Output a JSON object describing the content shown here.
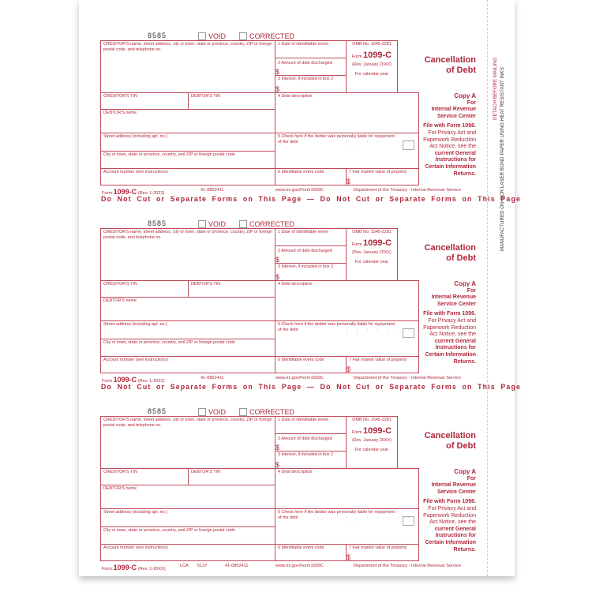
{
  "side": {
    "detach": "DETACH BEFORE MAILING",
    "manufactured": "MANUFACTURED ON OCR LASER BOND PAPER USING HEAT RESISTANT INKS"
  },
  "labels": {
    "form_number": "8585",
    "void": "VOID",
    "corrected": "CORRECTED",
    "creditor_name": "CREDITOR'S name, street address, city or town, state or province, country, ZIP or foreign postal code, and telephone no.",
    "creditor_tin": "CREDITOR'S TIN",
    "debtor_tin": "DEBTOR'S TIN",
    "debtor_name": "DEBTOR'S name",
    "street": "Street address (including apt. no.)",
    "city": "City or town, state or province, country, and ZIP or foreign postal code",
    "account": "Account number (see instructions)",
    "box1": "1 Date of identifiable event",
    "box2": "2 Amount of debt discharged",
    "box3": "3 Interest, if included in box 2",
    "box4": "4 Debt description",
    "box5": "5 Check here if the debtor was personally liable for repayment of the debt",
    "box5_dots": ". . . . . . . . .",
    "box6": "6 Identifiable event code",
    "box7": "7 Fair market value of property",
    "dollar": "$",
    "omb": "OMB No. 1545-2281",
    "form_word": "Form",
    "form_name": "1099-C",
    "rev_header": "(Rev. January 20XX)",
    "calendar": "For calendar year",
    "title1": "Cancellation",
    "title2": "of Debt",
    "copy_a": "Copy A",
    "for": "For",
    "irs1": "Internal Revenue",
    "irs2": "Service Center",
    "file_with": "File with Form 1096.",
    "privacy1": "For Privacy Act and",
    "privacy2": "Paperwork Reduction",
    "privacy3": "Act Notice, see the",
    "current1": "current General",
    "current2": "Instructions for",
    "current3": "Certain Information",
    "current4": "Returns.",
    "ein": "41-0852411",
    "url": "www.irs.gov/Form1099C",
    "dept": "Department of the Treasury - Internal Revenue Service",
    "do_not_cut": "Do Not Cut or Separate Forms on This Page — Do Not Cut or Separate Forms on This Page"
  },
  "forms": [
    {
      "rev": "(Rev. 1-2022)",
      "lca": "",
      "code": "",
      "do_not_cut": true
    },
    {
      "rev": "(Rev. 1-2022)",
      "lca": "",
      "code": "",
      "do_not_cut": true
    },
    {
      "rev": "(Rev. 1-20XX)",
      "lca": "LCA",
      "code": "5137",
      "do_not_cut": false
    }
  ],
  "colors": {
    "form_red": "#b0263a"
  }
}
